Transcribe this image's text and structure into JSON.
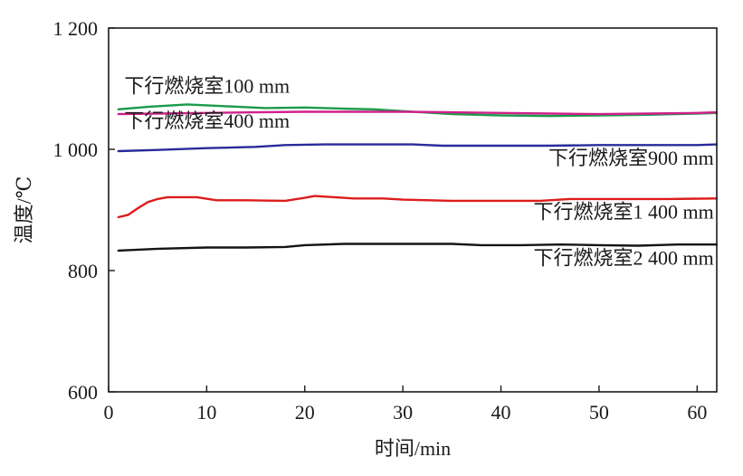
{
  "chart_data": {
    "type": "line",
    "xlabel": "时间/min",
    "ylabel": "温度/℃",
    "xlim": [
      0,
      62
    ],
    "ylim": [
      600,
      1200
    ],
    "xticks": [
      0,
      10,
      20,
      30,
      40,
      50,
      60
    ],
    "yticks": [
      600,
      800,
      1000,
      1200
    ],
    "xtick_labels": [
      "0",
      "10",
      "20",
      "30",
      "40",
      "50",
      "60"
    ],
    "ytick_labels": [
      "600",
      "800",
      "1 000",
      "1 200"
    ],
    "grid": false,
    "series": [
      {
        "name": "下行燃烧室100 mm",
        "color": "#1a9a4a",
        "points": [
          [
            1,
            1066
          ],
          [
            4,
            1070
          ],
          [
            8,
            1074
          ],
          [
            12,
            1071
          ],
          [
            16,
            1068
          ],
          [
            20,
            1069
          ],
          [
            24,
            1067
          ],
          [
            27,
            1066
          ],
          [
            30,
            1063
          ],
          [
            35,
            1058
          ],
          [
            40,
            1056
          ],
          [
            45,
            1055
          ],
          [
            50,
            1056
          ],
          [
            55,
            1057
          ],
          [
            60,
            1059
          ],
          [
            62,
            1060
          ]
        ]
      },
      {
        "name": "下行燃烧室400 mm",
        "color": "#d0208a",
        "points": [
          [
            1,
            1058
          ],
          [
            5,
            1059
          ],
          [
            10,
            1060
          ],
          [
            15,
            1061
          ],
          [
            20,
            1062
          ],
          [
            25,
            1062
          ],
          [
            30,
            1062
          ],
          [
            35,
            1061
          ],
          [
            40,
            1060
          ],
          [
            45,
            1059
          ],
          [
            50,
            1058
          ],
          [
            55,
            1059
          ],
          [
            60,
            1060
          ],
          [
            62,
            1061
          ]
        ]
      },
      {
        "name": "下行燃烧室900 mm",
        "color": "#2a2a9a",
        "points": [
          [
            1,
            997
          ],
          [
            5,
            999
          ],
          [
            10,
            1002
          ],
          [
            15,
            1004
          ],
          [
            18,
            1007
          ],
          [
            22,
            1008
          ],
          [
            27,
            1008
          ],
          [
            31,
            1008
          ],
          [
            34,
            1006
          ],
          [
            40,
            1006
          ],
          [
            45,
            1006
          ],
          [
            50,
            1007
          ],
          [
            55,
            1007
          ],
          [
            60,
            1007
          ],
          [
            62,
            1008
          ]
        ]
      },
      {
        "name": "下行燃烧室1 400 mm",
        "color": "#dd1c1c",
        "points": [
          [
            1,
            888
          ],
          [
            2,
            892
          ],
          [
            3,
            903
          ],
          [
            4,
            913
          ],
          [
            5,
            918
          ],
          [
            6,
            921
          ],
          [
            9,
            921
          ],
          [
            11,
            916
          ],
          [
            14,
            916
          ],
          [
            18,
            915
          ],
          [
            20,
            920
          ],
          [
            21,
            923
          ],
          [
            23,
            921
          ],
          [
            25,
            919
          ],
          [
            28,
            919
          ],
          [
            30,
            917
          ],
          [
            35,
            915
          ],
          [
            40,
            915
          ],
          [
            44,
            915
          ],
          [
            47,
            918
          ],
          [
            52,
            918
          ],
          [
            57,
            918
          ],
          [
            62,
            919
          ]
        ]
      },
      {
        "name": "下行燃烧室2 400 mm",
        "color": "#141414",
        "points": [
          [
            1,
            833
          ],
          [
            5,
            836
          ],
          [
            10,
            838
          ],
          [
            14,
            838
          ],
          [
            18,
            839
          ],
          [
            20,
            842
          ],
          [
            24,
            844
          ],
          [
            30,
            844
          ],
          [
            35,
            844
          ],
          [
            38,
            842
          ],
          [
            42,
            842
          ],
          [
            46,
            843
          ],
          [
            50,
            842
          ],
          [
            54,
            841
          ],
          [
            58,
            843
          ],
          [
            62,
            843
          ]
        ]
      }
    ],
    "annotations": [
      {
        "text": "下行燃烧室100 mm",
        "x": 1.6,
        "y": 1093,
        "anchor": "start"
      },
      {
        "text": "下行燃烧室400 mm",
        "x": 1.6,
        "y": 1036,
        "anchor": "start"
      },
      {
        "text": "下行燃烧室900 mm",
        "x": 61.7,
        "y": 975,
        "anchor": "end"
      },
      {
        "text": "下行燃烧室1 400 mm",
        "x": 61.7,
        "y": 886,
        "anchor": "end"
      },
      {
        "text": "下行燃烧室2 400 mm",
        "x": 61.7,
        "y": 810,
        "anchor": "end"
      }
    ]
  }
}
